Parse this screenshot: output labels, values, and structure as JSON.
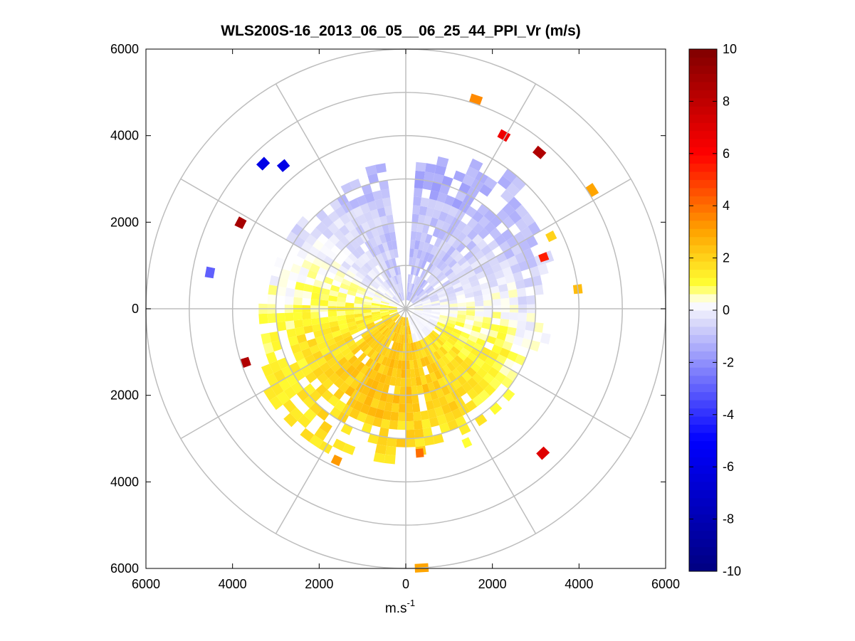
{
  "chart_data": {
    "type": "heatmap",
    "subtype": "polar-ppi",
    "title": "WLS200S-16_2013_06_05__06_25_44_PPI_Vr (m/s)",
    "xlabel": {
      "base": "m.s",
      "superscript": "-1"
    },
    "ylabel": "",
    "xlim": [
      -6000,
      6000
    ],
    "ylim": [
      -6000,
      6000
    ],
    "x_ticks": [
      {
        "value": -6000,
        "label": "6000"
      },
      {
        "value": -4000,
        "label": "4000"
      },
      {
        "value": -2000,
        "label": "2000"
      },
      {
        "value": 0,
        "label": "0"
      },
      {
        "value": 2000,
        "label": "2000"
      },
      {
        "value": 4000,
        "label": "4000"
      },
      {
        "value": 6000,
        "label": "6000"
      }
    ],
    "y_ticks": [
      {
        "value": 6000,
        "label": "6000"
      },
      {
        "value": 4000,
        "label": "4000"
      },
      {
        "value": 2000,
        "label": "2000"
      },
      {
        "value": 0,
        "label": "0"
      },
      {
        "value": -2000,
        "label": "2000"
      },
      {
        "value": -4000,
        "label": "4000"
      },
      {
        "value": -6000,
        "label": "6000"
      }
    ],
    "polar_grid": {
      "ring_step": 1000,
      "ring_max": 6000,
      "spoke_step_deg": 30,
      "grid": true
    },
    "range_gate_m": 200,
    "azimuth_step_deg": 4,
    "field_description": "radial velocity Vr (m/s): negative (blue) north side, positive (yellow/orange) south side",
    "colorbar": {
      "min": -10,
      "max": 10,
      "ticks": [
        10,
        8,
        6,
        4,
        2,
        0,
        -2,
        -4,
        -6,
        -8,
        -10
      ],
      "colormap_stops": [
        {
          "v": -10,
          "color": "#000080"
        },
        {
          "v": -5,
          "color": "#0000ff"
        },
        {
          "v": -0.4,
          "color": "#dcdcfa"
        },
        {
          "v": 0.3,
          "color": "#ffffff"
        },
        {
          "v": 1,
          "color": "#ffff33"
        },
        {
          "v": 3,
          "color": "#ffa500"
        },
        {
          "v": 6,
          "color": "#ff0000"
        },
        {
          "v": 10,
          "color": "#800000"
        }
      ]
    },
    "sparse_cells": [
      {
        "r": 5000,
        "az": 17,
        "v": 3.5
      },
      {
        "r": 4500,
        "az": 28,
        "v": 6.5
      },
      {
        "r": 4650,
        "az": 39,
        "v": 8.5
      },
      {
        "r": 5000,
        "az": 56,
        "v": 3.0
      },
      {
        "r": 3650,
        "az": 62,
        "v": 2.0
      },
      {
        "r": 3300,
        "az": 68,
        "v": 5.5
      },
      {
        "r": 3900,
        "az": 82,
        "v": 2.5
      },
      {
        "r": 4200,
        "az": 296,
        "v": 8.8
      },
      {
        "r": 4600,
        "az": 314,
        "v": -6.0
      },
      {
        "r": 4250,
        "az": 318,
        "v": -6.0
      },
      {
        "r": 4500,
        "az": 279,
        "v": -3.0
      },
      {
        "r": 3800,
        "az": 250,
        "v": 8.5
      },
      {
        "r": 4500,
        "az": 135,
        "v": 7.0
      },
      {
        "r": 3750,
        "az": 203,
        "v": 3.2
      },
      {
        "r": 3300,
        "az": 154,
        "v": 1.0
      },
      {
        "r": 5900,
        "az": 175,
        "v": 3.0
      },
      {
        "r": 3250,
        "az": 173,
        "v": 4.0
      }
    ]
  }
}
